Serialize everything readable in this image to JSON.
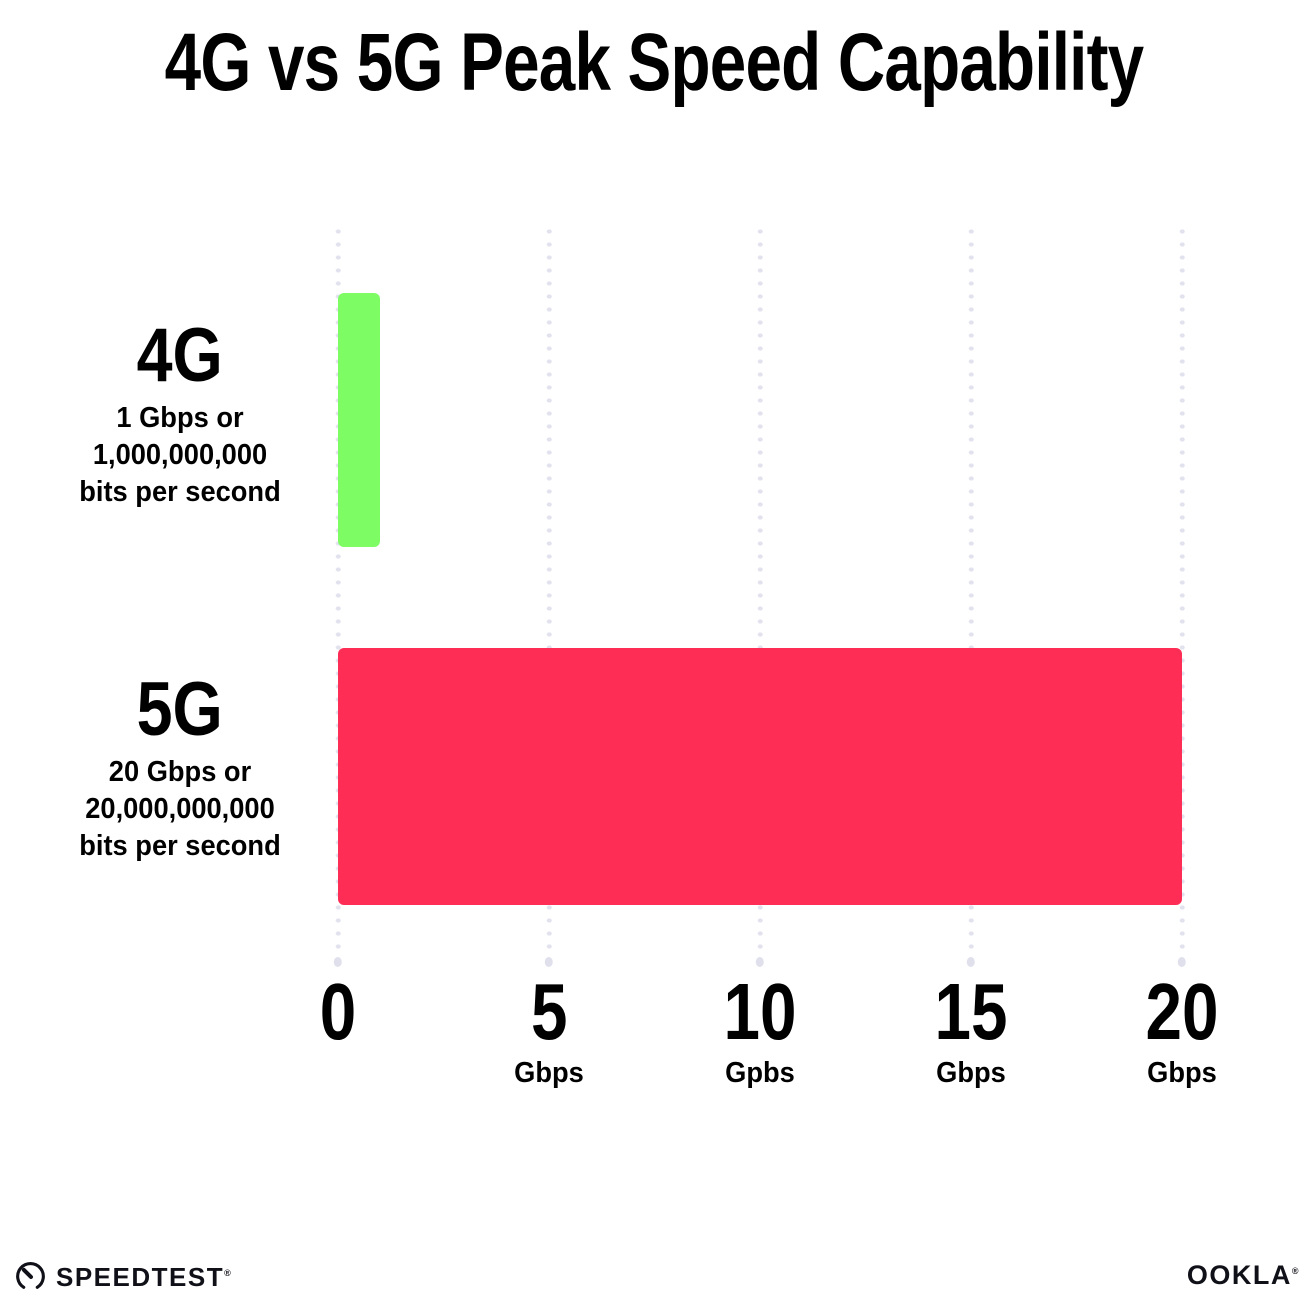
{
  "chart_data": {
    "type": "bar",
    "orientation": "horizontal",
    "title": "4G vs 5G Peak Speed Capability",
    "xlabel": "",
    "ylabel": "",
    "xlim": [
      0,
      20
    ],
    "grid": "vertical-dotted",
    "gridline_color": "#e2e2ee",
    "categories": [
      "4G",
      "5G"
    ],
    "values": [
      1,
      20
    ],
    "bars": [
      {
        "label": "4G",
        "value": 1,
        "color": "#7dfc63",
        "sublabel_lines": [
          "1 Gbps or",
          "1,000,000,000",
          "bits per second"
        ]
      },
      {
        "label": "5G",
        "value": 20,
        "color": "#fd2d55",
        "sublabel_lines": [
          "20 Gbps or",
          "20,000,000,000",
          "bits per second"
        ]
      }
    ],
    "x_ticks": [
      {
        "value": 0,
        "label": "0",
        "unit": ""
      },
      {
        "value": 5,
        "label": "5",
        "unit": "Gbps"
      },
      {
        "value": 10,
        "label": "10",
        "unit": "Gpbs"
      },
      {
        "value": 15,
        "label": "15",
        "unit": "Gbps"
      },
      {
        "value": 20,
        "label": "20",
        "unit": "Gbps"
      }
    ]
  },
  "footer": {
    "speedtest_label": "SPEEDTEST",
    "speedtest_mark": "®",
    "ookla_label": "OOKLA",
    "ookla_mark": "®"
  }
}
